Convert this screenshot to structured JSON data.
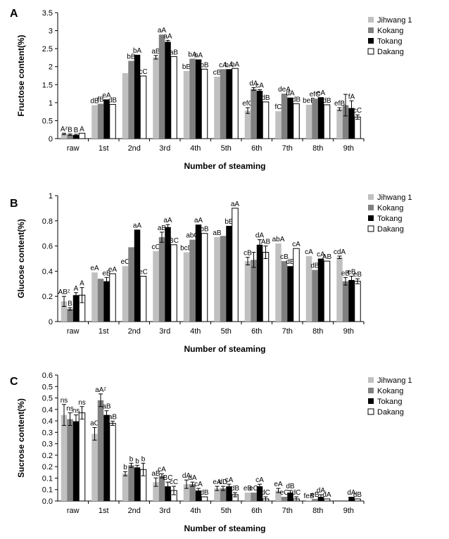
{
  "chart_data": [
    {
      "type": "bar",
      "panel_label": "A",
      "title": "",
      "xlabel": "Number of steaming",
      "ylabel": "Fructose content(%)",
      "ylim": [
        0,
        3.5
      ],
      "yticks": [
        "0",
        "0.5",
        "1",
        "1.5",
        "2",
        "2.5",
        "3",
        "3.5"
      ],
      "categories": [
        "raw",
        "1st",
        "2nd",
        "3rd",
        "4th",
        "5th",
        "6th",
        "7th",
        "8th",
        "9th"
      ],
      "legend_position": "top-right",
      "series": [
        {
          "name": "Jihwang 1",
          "color": "#c0c0c0",
          "values": [
            0.13,
            0.93,
            1.82,
            2.26,
            1.88,
            1.72,
            0.78,
            0.76,
            0.94,
            0.82
          ],
          "errors": [
            0.02,
            0,
            0,
            0.05,
            0,
            0,
            0.08,
            0,
            0,
            0.04
          ],
          "labels": [
            "Aᶻ",
            "dB",
            "",
            "aB",
            "bB",
            "cB",
            "efC",
            "fC",
            "beB",
            "efB"
          ]
        },
        {
          "name": "Kokang",
          "color": "#808080",
          "values": [
            0.11,
            0.97,
            2.16,
            2.89,
            2.22,
            1.93,
            1.38,
            1.25,
            1.11,
            0.93
          ],
          "errors": [
            0.02,
            0,
            0,
            0,
            0,
            0,
            0.04,
            0,
            0,
            0.3
          ],
          "labels": [
            "B",
            "fB",
            "bB",
            "aA",
            "bA",
            "cA",
            "dA",
            "deA",
            "efC",
            ""
          ]
        },
        {
          "name": "Tokang",
          "color": "#000000",
          "values": [
            0.1,
            1.09,
            2.33,
            2.69,
            2.2,
            1.93,
            1.33,
            1.14,
            1.15,
            0.85
          ],
          "errors": [
            0.02,
            0,
            0,
            0.04,
            0,
            0,
            0.03,
            0,
            0,
            0.2
          ],
          "labels": [
            "B",
            "eA",
            "bA",
            "aA",
            "bA",
            "bA",
            "cA",
            "dA",
            "eA",
            "fA"
          ]
        },
        {
          "name": "Dakang",
          "color": "#ffffff",
          "values": [
            0.15,
            0.95,
            1.74,
            2.28,
            1.93,
            1.95,
            1.02,
            0.97,
            0.94,
            0.6
          ],
          "errors": [
            0,
            0,
            0,
            0,
            0,
            0,
            0,
            0,
            0,
            0.06
          ],
          "labels": [
            "A",
            "dB",
            "cC",
            "aB",
            "bB",
            "bA",
            "dB",
            "dB",
            "dB",
            "cC"
          ]
        }
      ]
    },
    {
      "type": "bar",
      "panel_label": "B",
      "title": "",
      "xlabel": "Number of steaming",
      "ylabel": "Glucose content(%)",
      "ylim": [
        0,
        1
      ],
      "yticks": [
        "0",
        "0.2",
        "0.4",
        "0.6",
        "0.8",
        "1"
      ],
      "categories": [
        "raw",
        "1st",
        "2nd",
        "3rd",
        "4th",
        "5th",
        "6th",
        "7th",
        "8th",
        "9th"
      ],
      "legend_position": "top-right",
      "series": [
        {
          "name": "Jihwang 1",
          "color": "#c0c0c0",
          "values": [
            0.16,
            0.39,
            0.44,
            0.56,
            0.55,
            0.67,
            0.48,
            0.62,
            0.52,
            0.51
          ],
          "errors": [
            0.04,
            0,
            0,
            0,
            0,
            0,
            0.03,
            0,
            0,
            0.01
          ],
          "labels": [
            "ABᶻ",
            "eA",
            "eC",
            "cC",
            "bcD",
            "aB",
            "cB",
            "abA",
            "cA",
            "cdA"
          ]
        },
        {
          "name": "Kokang",
          "color": "#808080",
          "values": [
            0.1,
            0.34,
            0.59,
            0.67,
            0.65,
            0.68,
            0.49,
            0.48,
            0.41,
            0.32
          ],
          "errors": [
            0.01,
            0,
            0,
            0.04,
            0,
            0,
            0.06,
            0,
            0,
            0.03
          ],
          "labels": [
            "B",
            "",
            "",
            "aB",
            "abC",
            "",
            "",
            "cB",
            "dB",
            "eB"
          ]
        },
        {
          "name": "Tokang",
          "color": "#000000",
          "values": [
            0.21,
            0.32,
            0.73,
            0.75,
            0.77,
            0.76,
            0.61,
            0.44,
            0.5,
            0.33
          ],
          "errors": [
            0.02,
            0.03,
            0,
            0.02,
            0,
            0,
            0.04,
            0,
            0,
            0.03
          ],
          "labels": [
            "A",
            "eB",
            "aA",
            "aA",
            "aA",
            "bB",
            "dA",
            "dB",
            "cA",
            "eB"
          ]
        },
        {
          "name": "Dakang",
          "color": "#ffffff",
          "values": [
            0.21,
            0.38,
            0.36,
            0.61,
            0.7,
            0.9,
            0.55,
            0.58,
            0.48,
            0.32
          ],
          "errors": [
            0.06,
            0,
            0,
            0,
            0,
            0,
            0.05,
            0,
            0,
            0.02
          ],
          "labels": [
            "A",
            "eA",
            "eC",
            "BC",
            "bB",
            "aA",
            "AB",
            "cA",
            "AB",
            "eB"
          ]
        }
      ]
    },
    {
      "type": "bar",
      "panel_label": "C",
      "title": "",
      "xlabel": "Number of steaming",
      "ylabel": "Sucrose content(%)",
      "ylim": [
        0,
        0.6
      ],
      "yticks": [
        "0.0",
        "0.1",
        "0.1",
        "0.2",
        "0.2",
        "0.3",
        "0.3",
        "0.4",
        "0.4",
        "0.5",
        "0.5",
        "0.6"
      ],
      "categories": [
        "raw",
        "1st",
        "2nd",
        "3rd",
        "4th",
        "5th",
        "6th",
        "7th",
        "8th",
        "9th"
      ],
      "legend_position": "top-right",
      "series": [
        {
          "name": "Jihwang 1",
          "color": "#c0c0c0",
          "values": [
            0.41,
            0.32,
            0.13,
            0.09,
            0.08,
            0.06,
            0.04,
            0.05,
            0.003,
            0
          ],
          "errors": [
            0.05,
            0.03,
            0.01,
            0.02,
            0.02,
            0.01,
            0,
            0.01,
            0,
            0
          ],
          "labels": [
            "ns",
            "aC",
            "b",
            "aB",
            "dA",
            "eA",
            "eB",
            "eA",
            "feB",
            ""
          ]
        },
        {
          "name": "Kokang",
          "color": "#808080",
          "values": [
            0.39,
            0.48,
            0.17,
            0.12,
            0.08,
            0.06,
            0.04,
            0.02,
            0.01,
            0
          ],
          "errors": [
            0.03,
            0.03,
            0.01,
            0.01,
            0.01,
            0.01,
            0,
            0,
            0,
            0
          ],
          "labels": [
            "ns",
            "aAᶻ",
            "b",
            "cA",
            "dA",
            "dD",
            "eC",
            "eC",
            "eB",
            ""
          ]
        },
        {
          "name": "Tokang",
          "color": "#000000",
          "values": [
            0.38,
            0.41,
            0.16,
            0.07,
            0.05,
            0.07,
            0.07,
            0.04,
            0.02,
            0.02
          ],
          "errors": [
            0.03,
            0.02,
            0.01,
            0.02,
            0.01,
            0.01,
            0.01,
            0.01,
            0.01,
            0
          ],
          "labels": [
            "ns",
            "aB",
            "b",
            "BC",
            "cA",
            "cA",
            "cA",
            "dB",
            "dA",
            "dA"
          ]
        },
        {
          "name": "Dakang",
          "color": "#ffffff",
          "values": [
            0.42,
            0.37,
            0.15,
            0.05,
            0.02,
            0.03,
            0.01,
            0.01,
            0.01,
            0.01
          ],
          "errors": [
            0.03,
            0.01,
            0.03,
            0.02,
            0,
            0.01,
            0.01,
            0.01,
            0,
            0
          ],
          "labels": [
            "ns",
            "aB",
            "b",
            "cC",
            "dB",
            "dB",
            "dC",
            "dC",
            "dA",
            "dB"
          ]
        }
      ]
    }
  ]
}
